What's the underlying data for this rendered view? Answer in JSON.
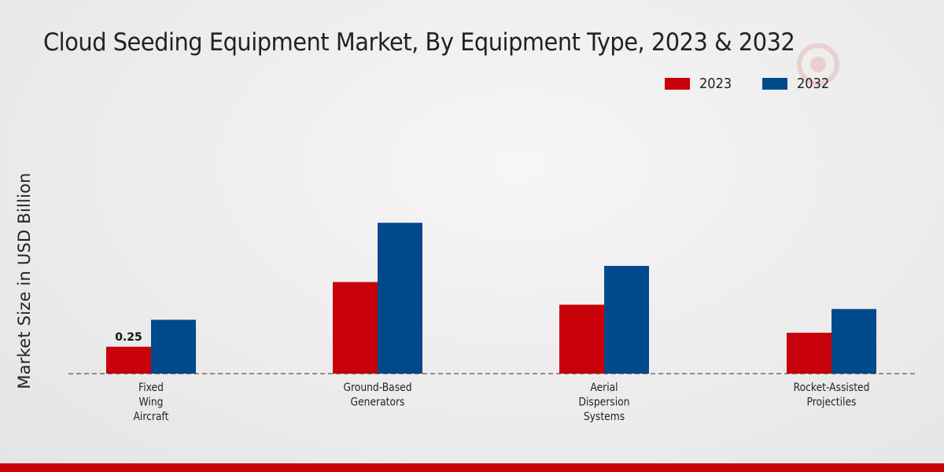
{
  "chart_data": {
    "type": "bar",
    "title": "Cloud Seeding Equipment Market, By Equipment Type, 2023 & 2032",
    "xlabel": "",
    "ylabel": "Market Size in USD Billion",
    "categories": [
      "Fixed\nWing\nAircraft",
      "Ground-Based\nGenerators",
      "Aerial\nDispersion\nSystems",
      "Rocket-Assisted\nProjectiles"
    ],
    "series": [
      {
        "name": "2023",
        "color": "#c8000a",
        "values": [
          0.25,
          0.85,
          0.64,
          0.38
        ]
      },
      {
        "name": "2032",
        "color": "#004a8c",
        "values": [
          0.5,
          1.4,
          1.0,
          0.6
        ]
      }
    ],
    "data_labels": [
      {
        "series": 0,
        "index": 0,
        "text": "0.25"
      }
    ],
    "ylim": [
      0,
      2.5
    ],
    "grid": false,
    "legend": "top-right"
  }
}
